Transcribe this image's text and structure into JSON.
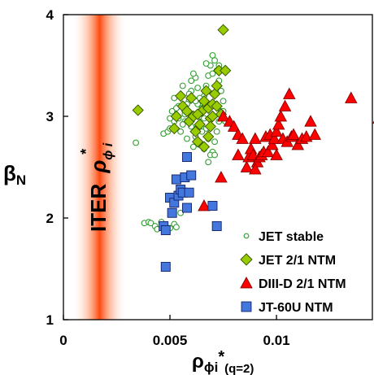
{
  "chart_data": {
    "type": "scatter",
    "xlabel": {
      "symbol": "ρ",
      "sub1": "ϕi",
      "sup": "*",
      "sub2": "(q=2)"
    },
    "ylabel": {
      "symbol": "β",
      "sub": "N"
    },
    "xlim": [
      0,
      0.0145
    ],
    "ylim": [
      1,
      4
    ],
    "x_ticks": [
      "0",
      "0.005",
      "0.01"
    ],
    "x_tick_values": [
      0,
      0.005,
      0.01
    ],
    "y_ticks": [
      "1",
      "2",
      "3",
      "4"
    ],
    "y_tick_values": [
      1,
      2,
      3,
      4
    ],
    "grid": false,
    "legend_position": "bottom-right",
    "band": {
      "label": {
        "text": "ITER",
        "symbol": "ρ",
        "sub": "ϕ i",
        "sup": "*"
      },
      "center": 0.0017,
      "halfwidth": 0.0013,
      "color": "#ff5a1f"
    },
    "series": [
      {
        "name": "JET stable",
        "marker": "circle",
        "color": "#2e9e2e",
        "points": [
          [
            0.0034,
            2.74
          ],
          [
            0.0038,
            1.95
          ],
          [
            0.004,
            1.96
          ],
          [
            0.0041,
            1.95
          ],
          [
            0.0043,
            1.92
          ],
          [
            0.0044,
            1.89
          ],
          [
            0.0046,
            1.96
          ],
          [
            0.0048,
            1.92
          ],
          [
            0.005,
            1.9
          ],
          [
            0.0052,
            1.94
          ],
          [
            0.0053,
            1.91
          ],
          [
            0.0055,
            2.05
          ],
          [
            0.0047,
            2.83
          ],
          [
            0.0049,
            2.85
          ],
          [
            0.005,
            2.88
          ],
          [
            0.0052,
            2.95
          ],
          [
            0.0053,
            3.0
          ],
          [
            0.0054,
            3.1
          ],
          [
            0.0055,
            3.2
          ],
          [
            0.0056,
            3.3
          ],
          [
            0.0057,
            2.95
          ],
          [
            0.0058,
            3.05
          ],
          [
            0.0059,
            3.15
          ],
          [
            0.006,
            3.25
          ],
          [
            0.0061,
            2.7
          ],
          [
            0.0062,
            2.8
          ],
          [
            0.0063,
            2.9
          ],
          [
            0.0064,
            3.0
          ],
          [
            0.0065,
            3.1
          ],
          [
            0.0066,
            3.2
          ],
          [
            0.0067,
            3.3
          ],
          [
            0.0068,
            3.4
          ],
          [
            0.0069,
            3.5
          ],
          [
            0.007,
            3.6
          ],
          [
            0.0071,
            3.55
          ],
          [
            0.0072,
            3.45
          ],
          [
            0.0073,
            3.35
          ],
          [
            0.0074,
            3.25
          ],
          [
            0.0075,
            3.15
          ],
          [
            0.0074,
            3.05
          ],
          [
            0.0073,
            2.95
          ],
          [
            0.0072,
            2.85
          ],
          [
            0.0071,
            2.75
          ],
          [
            0.007,
            2.65
          ],
          [
            0.0069,
            2.62
          ],
          [
            0.0068,
            2.78
          ],
          [
            0.0067,
            2.88
          ],
          [
            0.0066,
            2.98
          ],
          [
            0.0065,
            3.08
          ],
          [
            0.0064,
            3.18
          ],
          [
            0.0063,
            3.28
          ],
          [
            0.0062,
            3.38
          ],
          [
            0.0061,
            3.42
          ],
          [
            0.006,
            3.35
          ],
          [
            0.0059,
            3.22
          ],
          [
            0.0058,
            3.12
          ],
          [
            0.0057,
            3.02
          ],
          [
            0.0056,
            2.92
          ],
          [
            0.0055,
            2.85
          ],
          [
            0.0054,
            2.98
          ],
          [
            0.0053,
            3.08
          ],
          [
            0.0052,
            3.18
          ],
          [
            0.0051,
            3.05
          ],
          [
            0.005,
            2.98
          ],
          [
            0.0064,
            2.72
          ],
          [
            0.0066,
            2.68
          ],
          [
            0.0068,
            2.55
          ],
          [
            0.0071,
            2.62
          ],
          [
            0.0073,
            3.5
          ],
          [
            0.007,
            3.42
          ],
          [
            0.0067,
            3.52
          ],
          [
            0.0063,
            3.12
          ],
          [
            0.006,
            2.9
          ],
          [
            0.0058,
            2.78
          ],
          [
            0.0076,
            2.95
          ],
          [
            0.0075,
            3.05
          ],
          [
            0.0062,
            3.15
          ],
          [
            0.0065,
            2.85
          ]
        ]
      },
      {
        "name": "JET 2/1 NTM",
        "marker": "diamond",
        "color": "#99cc00",
        "points": [
          [
            0.0035,
            3.06
          ],
          [
            0.0052,
            2.88
          ],
          [
            0.0053,
            3.0
          ],
          [
            0.0055,
            3.2
          ],
          [
            0.0056,
            3.1
          ],
          [
            0.0058,
            3.05
          ],
          [
            0.0059,
            2.95
          ],
          [
            0.006,
            3.18
          ],
          [
            0.0061,
            3.0
          ],
          [
            0.0062,
            2.85
          ],
          [
            0.0063,
            2.75
          ],
          [
            0.0064,
            2.92
          ],
          [
            0.0065,
            3.05
          ],
          [
            0.0066,
            3.15
          ],
          [
            0.0067,
            3.25
          ],
          [
            0.0068,
            3.08
          ],
          [
            0.0069,
            2.98
          ],
          [
            0.007,
            3.12
          ],
          [
            0.0071,
            3.22
          ],
          [
            0.0072,
            3.3
          ],
          [
            0.0073,
            3.45
          ],
          [
            0.0074,
            3.02
          ],
          [
            0.0075,
            3.85
          ],
          [
            0.0076,
            3.45
          ],
          [
            0.007,
            3.0
          ],
          [
            0.0069,
            2.9
          ],
          [
            0.0066,
            2.7
          ],
          [
            0.0068,
            2.8
          ],
          [
            0.0072,
            3.1
          ],
          [
            0.0063,
            3.02
          ]
        ]
      },
      {
        "name": "DIII-D 2/1 NTM",
        "marker": "triangle",
        "color": "#ff0000",
        "points": [
          [
            0.0075,
            3.0
          ],
          [
            0.0078,
            2.95
          ],
          [
            0.008,
            2.9
          ],
          [
            0.0082,
            2.82
          ],
          [
            0.0084,
            2.78
          ],
          [
            0.0086,
            2.5
          ],
          [
            0.0087,
            2.6
          ],
          [
            0.0088,
            2.68
          ],
          [
            0.0089,
            2.62
          ],
          [
            0.009,
            2.78
          ],
          [
            0.0091,
            2.55
          ],
          [
            0.0092,
            2.6
          ],
          [
            0.0093,
            2.62
          ],
          [
            0.0094,
            2.65
          ],
          [
            0.0095,
            2.8
          ],
          [
            0.0096,
            2.65
          ],
          [
            0.0097,
            2.82
          ],
          [
            0.0098,
            2.72
          ],
          [
            0.0099,
            2.78
          ],
          [
            0.01,
            2.85
          ],
          [
            0.0101,
            2.92
          ],
          [
            0.0102,
            3.0
          ],
          [
            0.0103,
            2.78
          ],
          [
            0.0104,
            3.1
          ],
          [
            0.0105,
            2.75
          ],
          [
            0.0106,
            3.22
          ],
          [
            0.0107,
            2.8
          ],
          [
            0.0108,
            2.82
          ],
          [
            0.011,
            2.72
          ],
          [
            0.0112,
            2.78
          ],
          [
            0.0114,
            2.8
          ],
          [
            0.0116,
            2.95
          ],
          [
            0.0118,
            2.82
          ],
          [
            0.0135,
            3.18
          ],
          [
            0.0148,
            2.98
          ],
          [
            0.0066,
            2.12
          ],
          [
            0.0074,
            2.4
          ],
          [
            0.0082,
            2.62
          ],
          [
            0.009,
            2.48
          ],
          [
            0.01,
            2.62
          ]
        ]
      },
      {
        "name": "JT-60U NTM",
        "marker": "square",
        "color": "#4477dd",
        "points": [
          [
            0.0047,
            1.92
          ],
          [
            0.0048,
            1.88
          ],
          [
            0.0048,
            1.52
          ],
          [
            0.005,
            2.2
          ],
          [
            0.0051,
            2.05
          ],
          [
            0.0052,
            2.15
          ],
          [
            0.0053,
            2.38
          ],
          [
            0.0054,
            2.22
          ],
          [
            0.0055,
            2.28
          ],
          [
            0.0056,
            2.25
          ],
          [
            0.0057,
            2.4
          ],
          [
            0.0058,
            2.1
          ],
          [
            0.0059,
            2.25
          ],
          [
            0.0058,
            2.6
          ],
          [
            0.006,
            2.42
          ],
          [
            0.007,
            2.12
          ],
          [
            0.0072,
            1.92
          ]
        ]
      }
    ]
  }
}
